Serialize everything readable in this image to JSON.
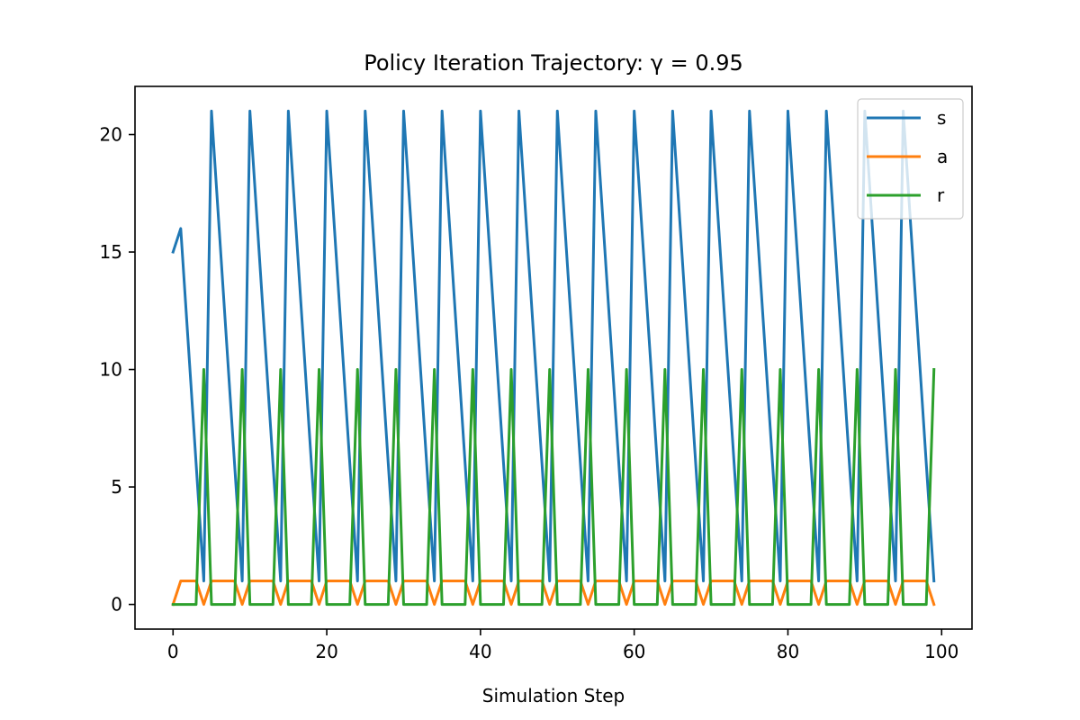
{
  "chart_data": {
    "type": "line",
    "title": "Policy Iteration Trajectory: γ = 0.95",
    "xlabel": "Simulation Step",
    "ylabel": "",
    "xlim": [
      -4.95,
      103.95
    ],
    "ylim": [
      -1.05,
      22.05
    ],
    "xticks": [
      0,
      20,
      40,
      60,
      80,
      100
    ],
    "yticks": [
      0,
      5,
      10,
      15,
      20
    ],
    "grid": false,
    "legend_position": "top-right",
    "x": [
      0,
      1,
      2,
      3,
      4,
      5,
      6,
      7,
      8,
      9,
      10,
      11,
      12,
      13,
      14,
      15,
      16,
      17,
      18,
      19,
      20,
      21,
      22,
      23,
      24,
      25,
      26,
      27,
      28,
      29,
      30,
      31,
      32,
      33,
      34,
      35,
      36,
      37,
      38,
      39,
      40,
      41,
      42,
      43,
      44,
      45,
      46,
      47,
      48,
      49,
      50,
      51,
      52,
      53,
      54,
      55,
      56,
      57,
      58,
      59,
      60,
      61,
      62,
      63,
      64,
      65,
      66,
      67,
      68,
      69,
      70,
      71,
      72,
      73,
      74,
      75,
      76,
      77,
      78,
      79,
      80,
      81,
      82,
      83,
      84,
      85,
      86,
      87,
      88,
      89,
      90,
      91,
      92,
      93,
      94,
      95,
      96,
      97,
      98,
      99
    ],
    "series": [
      {
        "name": "s",
        "color": "#1f77b4",
        "values": [
          15,
          16,
          11,
          6,
          1,
          21,
          16,
          11,
          6,
          1,
          21,
          16,
          11,
          6,
          1,
          21,
          16,
          11,
          6,
          1,
          21,
          16,
          11,
          6,
          1,
          21,
          16,
          11,
          6,
          1,
          21,
          16,
          11,
          6,
          1,
          21,
          16,
          11,
          6,
          1,
          21,
          16,
          11,
          6,
          1,
          21,
          16,
          11,
          6,
          1,
          21,
          16,
          11,
          6,
          1,
          21,
          16,
          11,
          6,
          1,
          21,
          16,
          11,
          6,
          1,
          21,
          16,
          11,
          6,
          1,
          21,
          16,
          11,
          6,
          1,
          21,
          16,
          11,
          6,
          1,
          21,
          16,
          11,
          6,
          1,
          21,
          16,
          11,
          6,
          1,
          21,
          16,
          11,
          6,
          1,
          21,
          16,
          11,
          6,
          1
        ]
      },
      {
        "name": "a",
        "color": "#ff7f0e",
        "values": [
          0,
          1,
          1,
          1,
          0,
          1,
          1,
          1,
          1,
          0,
          1,
          1,
          1,
          1,
          0,
          1,
          1,
          1,
          1,
          0,
          1,
          1,
          1,
          1,
          0,
          1,
          1,
          1,
          1,
          0,
          1,
          1,
          1,
          1,
          0,
          1,
          1,
          1,
          1,
          0,
          1,
          1,
          1,
          1,
          0,
          1,
          1,
          1,
          1,
          0,
          1,
          1,
          1,
          1,
          0,
          1,
          1,
          1,
          1,
          0,
          1,
          1,
          1,
          1,
          0,
          1,
          1,
          1,
          1,
          0,
          1,
          1,
          1,
          1,
          0,
          1,
          1,
          1,
          1,
          0,
          1,
          1,
          1,
          1,
          0,
          1,
          1,
          1,
          1,
          0,
          1,
          1,
          1,
          1,
          0,
          1,
          1,
          1,
          1,
          0
        ]
      },
      {
        "name": "r",
        "color": "#2ca02c",
        "values": [
          0,
          0,
          0,
          0,
          10,
          0,
          0,
          0,
          0,
          10,
          0,
          0,
          0,
          0,
          10,
          0,
          0,
          0,
          0,
          10,
          0,
          0,
          0,
          0,
          10,
          0,
          0,
          0,
          0,
          10,
          0,
          0,
          0,
          0,
          10,
          0,
          0,
          0,
          0,
          10,
          0,
          0,
          0,
          0,
          10,
          0,
          0,
          0,
          0,
          10,
          0,
          0,
          0,
          0,
          10,
          0,
          0,
          0,
          0,
          10,
          0,
          0,
          0,
          0,
          10,
          0,
          0,
          0,
          0,
          10,
          0,
          0,
          0,
          0,
          10,
          0,
          0,
          0,
          0,
          10,
          0,
          0,
          0,
          0,
          10,
          0,
          0,
          0,
          0,
          10,
          0,
          0,
          0,
          0,
          10,
          0,
          0,
          0,
          0,
          10
        ]
      }
    ]
  }
}
